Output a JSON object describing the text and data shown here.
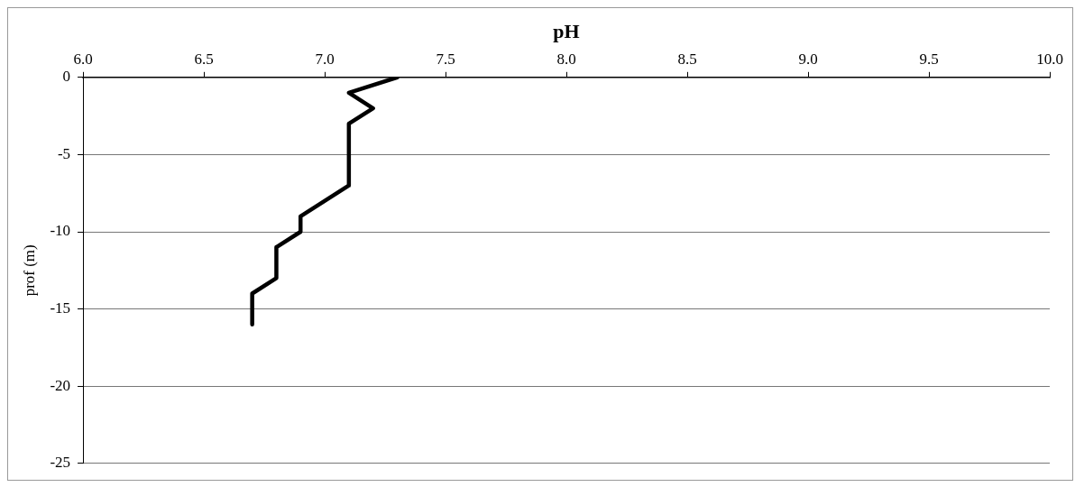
{
  "chart_data": {
    "type": "line",
    "xlabel": "pH",
    "ylabel": "prof (m)",
    "x": [
      7.3,
      7.1,
      7.2,
      7.1,
      7.1,
      6.9,
      6.9,
      6.8,
      6.8,
      6.7,
      6.7
    ],
    "values": [
      0,
      -1,
      -2,
      -3,
      -7,
      -9,
      -10,
      -11,
      -13,
      -14,
      -16
    ],
    "color": "#000000",
    "marker": "none",
    "xlim": [
      6,
      10
    ],
    "xticks": [
      {
        "value": 6,
        "label": "6.0"
      },
      {
        "value": 6.5,
        "label": "6.5"
      },
      {
        "value": 7,
        "label": "7.0"
      },
      {
        "value": 7.5,
        "label": "7.5"
      },
      {
        "value": 8,
        "label": "8.0"
      },
      {
        "value": 8.5,
        "label": "8.5"
      },
      {
        "value": 9,
        "label": "9.0"
      },
      {
        "value": 9.5,
        "label": "9.5"
      },
      {
        "value": 10,
        "label": "10.0"
      }
    ],
    "ylim": [
      -25,
      0
    ],
    "yticks": [
      -25,
      -20,
      -15,
      -10,
      -5,
      0
    ],
    "grid": "y"
  }
}
